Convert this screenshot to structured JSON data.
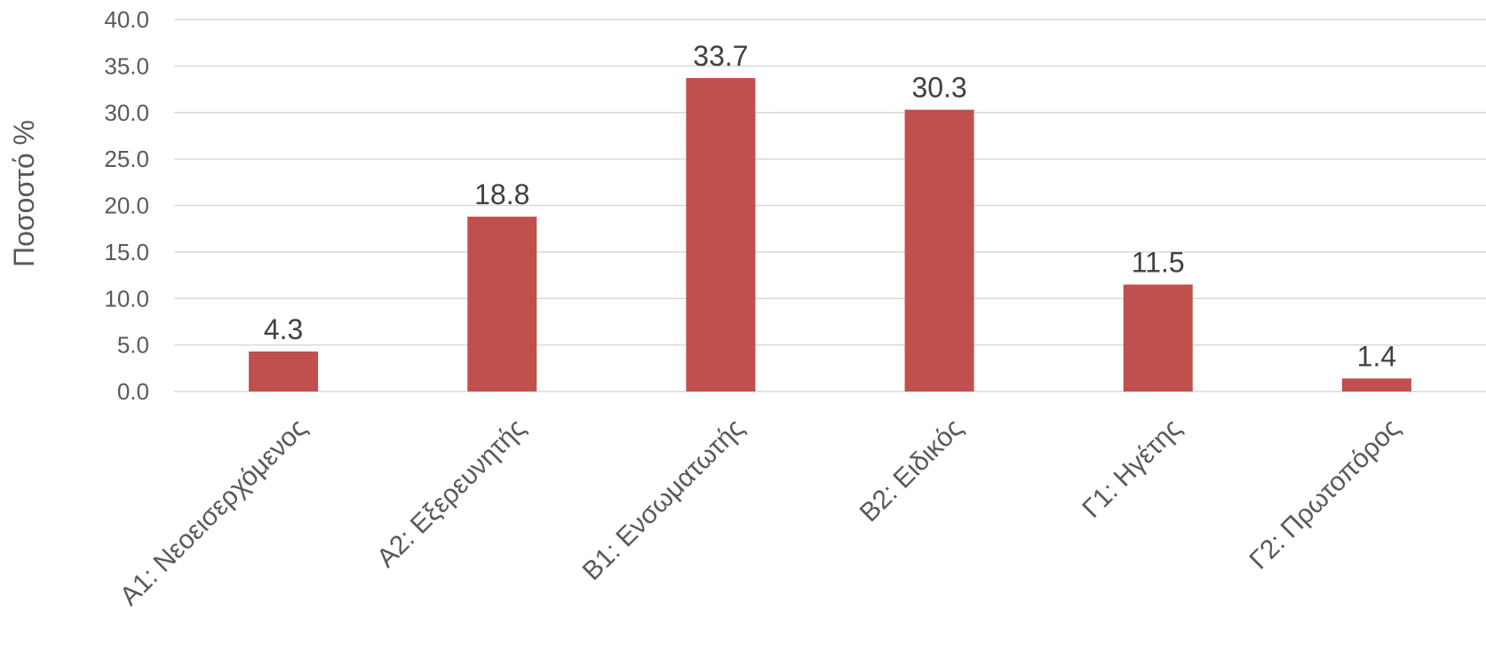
{
  "chart_data": {
    "type": "bar",
    "title": "",
    "xlabel": "",
    "ylabel": "Ποσοστό %",
    "categories": [
      "Α1: Νεοεισερχόμενος",
      "Α2: Εξερευνητής",
      "Β1: Ενσωματωτής",
      "Β2: Ειδικός",
      "Γ1: Ηγέτης",
      "Γ2: Πρωτοπόρος"
    ],
    "values": [
      4.3,
      18.8,
      33.7,
      30.3,
      11.5,
      1.4
    ],
    "value_labels": [
      "4.3",
      "18.8",
      "33.7",
      "30.3",
      "11.5",
      "1.4"
    ],
    "ylim": [
      0,
      40
    ],
    "yticks": [
      0,
      5,
      10,
      15,
      20,
      25,
      30,
      35,
      40
    ],
    "ytick_labels": [
      "0.0",
      "5.0",
      "10.0",
      "15.0",
      "20.0",
      "25.0",
      "30.0",
      "35.0",
      "40.0"
    ],
    "grid": true,
    "legend": "none",
    "bar_color": "#c0504d"
  }
}
